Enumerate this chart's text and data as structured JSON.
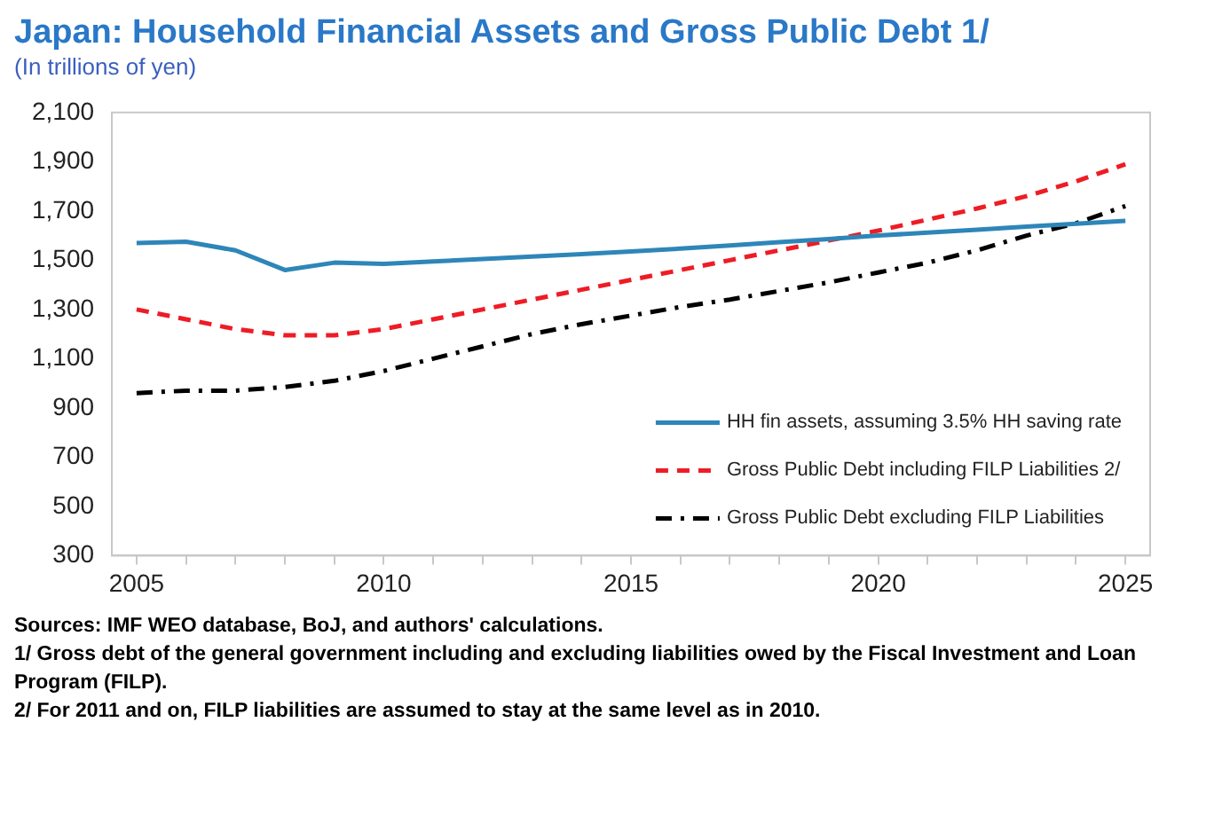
{
  "chart_data": {
    "type": "line",
    "title": "Japan: Household Financial Assets and Gross Public Debt 1/",
    "subtitle": "(In trillions of yen)",
    "x": [
      2005,
      2006,
      2007,
      2008,
      2009,
      2010,
      2011,
      2012,
      2013,
      2014,
      2015,
      2016,
      2017,
      2018,
      2019,
      2020,
      2021,
      2022,
      2023,
      2024,
      2025
    ],
    "series": [
      {
        "name": "HH fin assets, assuming 3.5% HH saving rate",
        "color": "#2e86b8",
        "line_style": "solid",
        "values": [
          1570,
          1575,
          1540,
          1460,
          1490,
          1485,
          1495,
          1505,
          1515,
          1525,
          1535,
          1547,
          1560,
          1573,
          1586,
          1600,
          1612,
          1624,
          1636,
          1648,
          1660
        ]
      },
      {
        "name": "Gross Public Debt including FILP Liabilities 2/",
        "color": "#ee1c25",
        "line_style": "dashed",
        "values": [
          1300,
          1260,
          1220,
          1195,
          1195,
          1220,
          1260,
          1300,
          1340,
          1380,
          1420,
          1460,
          1500,
          1540,
          1580,
          1620,
          1665,
          1710,
          1760,
          1820,
          1890
        ]
      },
      {
        "name": "Gross Public Debt excluding FILP Liabilities",
        "color": "#000000",
        "line_style": "dashdot",
        "values": [
          960,
          970,
          970,
          985,
          1010,
          1050,
          1100,
          1150,
          1200,
          1240,
          1275,
          1310,
          1340,
          1375,
          1410,
          1450,
          1490,
          1540,
          1600,
          1650,
          1720
        ]
      }
    ],
    "xlim": [
      2004.5,
      2025.5
    ],
    "xticks": [
      2005,
      {
        "value": 2006,
        "label": null
      },
      {
        "value": 2007,
        "label": null
      },
      {
        "value": 2008,
        "label": null
      },
      {
        "value": 2009,
        "label": null
      },
      2010,
      {
        "value": 2011,
        "label": null
      },
      {
        "value": 2012,
        "label": null
      },
      {
        "value": 2013,
        "label": null
      },
      {
        "value": 2014,
        "label": null
      },
      2015,
      {
        "value": 2016,
        "label": null
      },
      {
        "value": 2017,
        "label": null
      },
      {
        "value": 2018,
        "label": null
      },
      {
        "value": 2019,
        "label": null
      },
      2020,
      {
        "value": 2021,
        "label": null
      },
      {
        "value": 2022,
        "label": null
      },
      {
        "value": 2023,
        "label": null
      },
      {
        "value": 2024,
        "label": null
      },
      2025
    ],
    "ylim": [
      300,
      2100
    ],
    "yticks": [
      {
        "value": 300,
        "label": "300"
      },
      {
        "value": 500,
        "label": "500"
      },
      {
        "value": 700,
        "label": "700"
      },
      {
        "value": 900,
        "label": "900"
      },
      {
        "value": 1100,
        "label": "1,100"
      },
      {
        "value": 1300,
        "label": "1,300"
      },
      {
        "value": 1500,
        "label": "1,500"
      },
      {
        "value": 1700,
        "label": "1,700"
      },
      {
        "value": 1900,
        "label": "1,900"
      },
      {
        "value": 2100,
        "label": "2,100"
      }
    ],
    "grid": false,
    "legend": "bottom right",
    "marker": "none",
    "annotations": [
      "Sources: IMF WEO database, BoJ, and  authors' calculations.",
      "1/ Gross debt of the general government including and excluding liabilities owed by the Fiscal Investment and Loan Program (FILP).",
      "2/ For 2011 and on, FILP liabilities are assumed to stay at the same level as in 2010."
    ]
  }
}
